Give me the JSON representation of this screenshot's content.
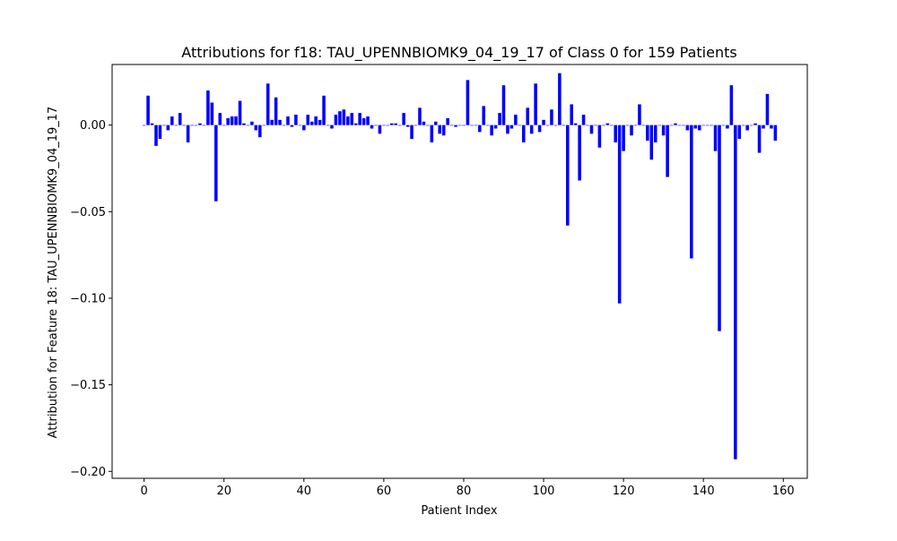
{
  "chart_data": {
    "type": "bar",
    "title": "Attributions for f18: TAU_UPENNBIOMK9_04_19_17 of Class 0 for 159 Patients",
    "xlabel": "Patient Index",
    "ylabel": "Attribution for Feature 18: TAU_UPENNBIOMK9_04_19_17",
    "xlim": [
      -8,
      166
    ],
    "ylim": [
      -0.204,
      0.035
    ],
    "xticks": [
      0,
      20,
      40,
      60,
      80,
      100,
      120,
      140,
      160
    ],
    "xtick_labels": [
      "0",
      "20",
      "40",
      "60",
      "80",
      "100",
      "120",
      "140",
      "160"
    ],
    "yticks": [
      0.0,
      -0.05,
      -0.1,
      -0.15,
      -0.2
    ],
    "ytick_labels": [
      "0.00",
      "−0.05",
      "−0.10",
      "−0.15",
      "−0.20"
    ],
    "grid": false,
    "bar_color": "#0000ff",
    "x": [
      0,
      1,
      2,
      3,
      4,
      5,
      6,
      7,
      8,
      9,
      10,
      11,
      12,
      13,
      14,
      15,
      16,
      17,
      18,
      19,
      20,
      21,
      22,
      23,
      24,
      25,
      26,
      27,
      28,
      29,
      30,
      31,
      32,
      33,
      34,
      35,
      36,
      37,
      38,
      39,
      40,
      41,
      42,
      43,
      44,
      45,
      46,
      47,
      48,
      49,
      50,
      51,
      52,
      53,
      54,
      55,
      56,
      57,
      58,
      59,
      60,
      61,
      62,
      63,
      64,
      65,
      66,
      67,
      68,
      69,
      70,
      71,
      72,
      73,
      74,
      75,
      76,
      77,
      78,
      79,
      80,
      81,
      82,
      83,
      84,
      85,
      86,
      87,
      88,
      89,
      90,
      91,
      92,
      93,
      94,
      95,
      96,
      97,
      98,
      99,
      100,
      101,
      102,
      103,
      104,
      105,
      106,
      107,
      108,
      109,
      110,
      111,
      112,
      113,
      114,
      115,
      116,
      117,
      118,
      119,
      120,
      121,
      122,
      123,
      124,
      125,
      126,
      127,
      128,
      129,
      130,
      131,
      132,
      133,
      134,
      135,
      136,
      137,
      138,
      139,
      140,
      141,
      142,
      143,
      144,
      145,
      146,
      147,
      148,
      149,
      150,
      151,
      152,
      153,
      154,
      155,
      156,
      157,
      158
    ],
    "values": [
      0.0,
      0.017,
      0.001,
      -0.012,
      -0.008,
      0.0,
      -0.003,
      0.005,
      0.0,
      0.007,
      0.0,
      -0.01,
      0.0,
      0.0,
      0.001,
      0.0,
      0.02,
      0.013,
      -0.044,
      0.007,
      0.0,
      0.004,
      0.005,
      0.005,
      0.014,
      0.001,
      0.0,
      0.002,
      -0.003,
      -0.007,
      0.0,
      0.024,
      0.003,
      0.016,
      0.003,
      0.0,
      0.005,
      -0.001,
      0.006,
      0.0,
      -0.003,
      0.006,
      0.002,
      0.005,
      0.003,
      0.017,
      0.0,
      -0.002,
      0.006,
      0.008,
      0.009,
      0.005,
      0.007,
      0.001,
      0.007,
      0.004,
      0.005,
      -0.002,
      0.0,
      -0.005,
      0.0,
      0.0,
      0.001,
      0.001,
      0.0,
      0.007,
      -0.001,
      -0.008,
      0.0,
      0.01,
      0.002,
      0.0,
      -0.01,
      0.002,
      -0.005,
      -0.006,
      0.004,
      0.0,
      -0.001,
      0.0,
      0.0,
      0.026,
      0.0,
      0.0,
      -0.004,
      0.011,
      0.0,
      -0.006,
      -0.002,
      0.007,
      0.023,
      -0.005,
      -0.002,
      0.006,
      0.0,
      -0.01,
      0.01,
      -0.005,
      0.024,
      -0.004,
      0.003,
      0.0,
      0.009,
      0.0,
      0.03,
      0.0,
      -0.058,
      0.012,
      0.001,
      -0.032,
      0.006,
      0.0,
      -0.005,
      0.0,
      -0.013,
      0.0,
      0.001,
      0.0,
      -0.01,
      -0.103,
      -0.015,
      0.0,
      -0.006,
      0.0,
      0.012,
      0.0,
      -0.009,
      -0.02,
      -0.01,
      0.0,
      -0.006,
      -0.03,
      0.0,
      0.001,
      0.0,
      0.0,
      -0.003,
      -0.077,
      -0.002,
      -0.003,
      0.0,
      0.0,
      0.0,
      -0.015,
      -0.119,
      0.0,
      -0.002,
      0.023,
      -0.193,
      -0.008,
      0.0,
      -0.003,
      0.0,
      0.001,
      -0.016,
      -0.002,
      0.018,
      -0.002,
      -0.009
    ]
  }
}
